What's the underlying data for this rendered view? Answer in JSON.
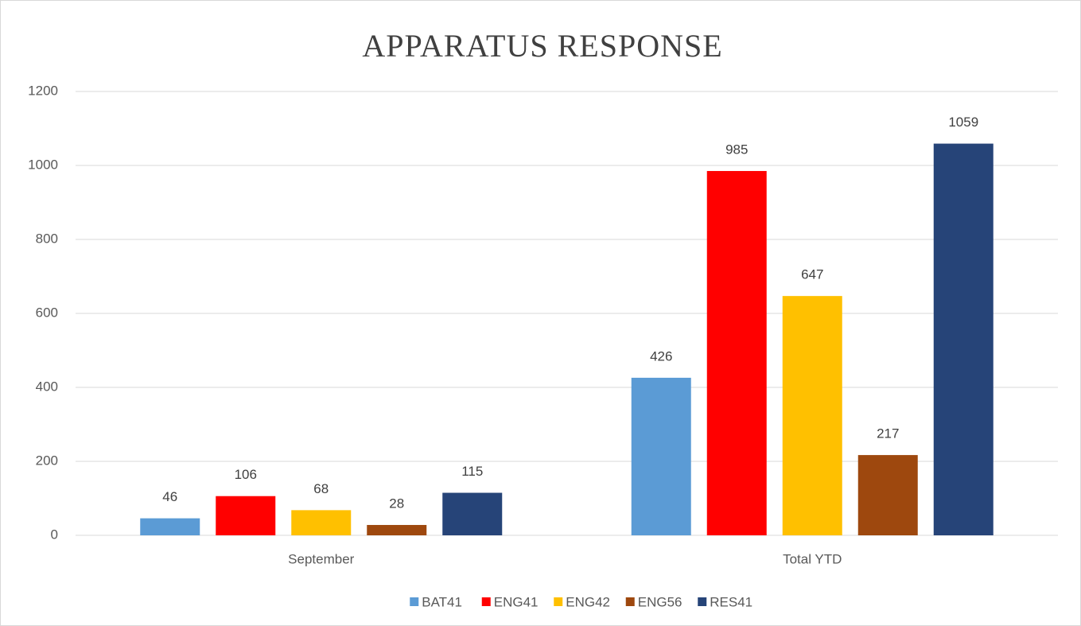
{
  "chart_data": {
    "type": "bar",
    "title": "APPARATUS RESPONSE",
    "categories": [
      "September",
      "Total YTD"
    ],
    "series": [
      {
        "name": "BAT41",
        "color": "#5b9bd5",
        "values": [
          46,
          426
        ]
      },
      {
        "name": "ENG41",
        "color": "#ff0000",
        "values": [
          106,
          985
        ]
      },
      {
        "name": "ENG42",
        "color": "#ffc000",
        "values": [
          68,
          647
        ]
      },
      {
        "name": "ENG56",
        "color": "#9e480e",
        "values": [
          28,
          217
        ]
      },
      {
        "name": "RES41",
        "color": "#264478",
        "values": [
          115,
          1059
        ]
      }
    ],
    "ylim": [
      0,
      1200
    ],
    "yticks": [
      0,
      200,
      400,
      600,
      800,
      1000,
      1200
    ],
    "grid": true,
    "legend": "bottom"
  }
}
